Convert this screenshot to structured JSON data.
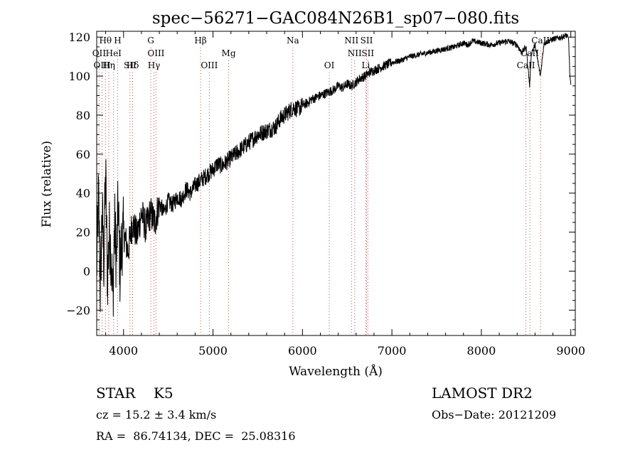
{
  "chart_data": {
    "type": "line",
    "title": "spec−56271−GAC084N26B1_sp07−080.fits",
    "xlabel": "Wavelength (Å)",
    "ylabel": "Flux (relative)",
    "xlim": [
      3700,
      9050
    ],
    "ylim": [
      -33,
      123
    ],
    "x_ticks": [
      4000,
      5000,
      6000,
      7000,
      8000,
      9000
    ],
    "y_ticks": [
      -20,
      0,
      20,
      40,
      60,
      80,
      100,
      120
    ],
    "y_tick_labels": [
      "−20",
      "0",
      "20",
      "40",
      "60",
      "80",
      "100",
      "120"
    ],
    "grid": false,
    "line_color": "#000000",
    "marker_color": "#c0504d",
    "series": [
      {
        "x": [
          3700,
          3720,
          3740,
          3760,
          3780,
          3800,
          3820,
          3840,
          3860,
          3880,
          3900,
          3920,
          3940,
          3960,
          3980,
          4000,
          4050,
          4100,
          4150,
          4200,
          4250,
          4300,
          4350,
          4400,
          4450,
          4500,
          4550,
          4600,
          4650,
          4700,
          4750,
          4800,
          4850,
          4900,
          4950,
          5000,
          5050,
          5100,
          5150,
          5200,
          5250,
          5300,
          5350,
          5400,
          5450,
          5500,
          5550,
          5600,
          5650,
          5700,
          5750,
          5800,
          5850,
          5900,
          5950,
          6000,
          6050,
          6100,
          6150,
          6200,
          6250,
          6300,
          6350,
          6400,
          6450,
          6500,
          6550,
          6600,
          6650,
          6700,
          6750,
          6800,
          6850,
          6900,
          6950,
          7000,
          7100,
          7200,
          7300,
          7400,
          7500,
          7600,
          7700,
          7800,
          7850,
          7900,
          8000,
          8100,
          8200,
          8300,
          8400,
          8450,
          8500,
          8540,
          8560,
          8600,
          8660,
          8700,
          8800,
          8900,
          8950,
          8975,
          8990,
          9000
        ],
        "y": [
          0,
          40,
          -10,
          30,
          5,
          50,
          -5,
          20,
          10,
          -15,
          25,
          5,
          35,
          0,
          15,
          20,
          10,
          25,
          18,
          30,
          22,
          30,
          25,
          35,
          30,
          36,
          34,
          38,
          37,
          42,
          40,
          44,
          46,
          48,
          50,
          52,
          55,
          54,
          56,
          58,
          60,
          62,
          64,
          66,
          68,
          70,
          71,
          72,
          73,
          74,
          78,
          80,
          82,
          84,
          83,
          85,
          86,
          88,
          89,
          90,
          91,
          92,
          93,
          95,
          94,
          96,
          95,
          97,
          99,
          100,
          102,
          103,
          104,
          105,
          106,
          107,
          108,
          110,
          111,
          112,
          113,
          114,
          115,
          117,
          116,
          118,
          117,
          116,
          117,
          118,
          116,
          112,
          115,
          95,
          112,
          116,
          100,
          117,
          119,
          120,
          121,
          119,
          100,
          95
        ]
      }
    ],
    "lines": [
      {
        "label": "Hθ",
        "wl": 3798,
        "row": 0
      },
      {
        "label": "H",
        "wl": 3934,
        "row": 0
      },
      {
        "label": "G",
        "wl": 4305,
        "row": 0
      },
      {
        "label": "Hβ",
        "wl": 4861,
        "row": 0
      },
      {
        "label": "Na",
        "wl": 5893,
        "row": 0
      },
      {
        "label": "NII",
        "wl": 6548,
        "row": 0
      },
      {
        "label": "SII",
        "wl": 6717,
        "row": 0
      },
      {
        "label": "CaII",
        "wl": 8662,
        "row": 0
      },
      {
        "label": "OII",
        "wl": 3727,
        "row": 1
      },
      {
        "label": "HeI",
        "wl": 3889,
        "row": 1
      },
      {
        "label": "OIII",
        "wl": 4363,
        "row": 1
      },
      {
        "label": "Mg",
        "wl": 5175,
        "row": 1
      },
      {
        "label": "NII",
        "wl": 6584,
        "row": 1
      },
      {
        "label": "SII",
        "wl": 6731,
        "row": 1
      },
      {
        "label": "CaII",
        "wl": 8542,
        "row": 1
      },
      {
        "label": "OIII",
        "wl": 3760,
        "row": 2
      },
      {
        "label": "Hη",
        "wl": 3835,
        "row": 2
      },
      {
        "label": "Hδ",
        "wl": 4102,
        "row": 2
      },
      {
        "label": "SII",
        "wl": 4072,
        "row": 2
      },
      {
        "label": "Hγ",
        "wl": 4340,
        "row": 2
      },
      {
        "label": "OIII",
        "wl": 4959,
        "row": 2
      },
      {
        "label": "OI",
        "wl": 6300,
        "row": 2
      },
      {
        "label": "Li",
        "wl": 6708,
        "row": 2
      },
      {
        "label": "CaII",
        "wl": 8498,
        "row": 2
      }
    ]
  },
  "footer": {
    "object": "STAR    K5",
    "survey": "LAMOST DR2",
    "cz": "cz = 15.2 ± 3.4 km/s",
    "obs_date": "Obs−Date: 20121209",
    "coords": "RA =  86.74134, DEC =  25.08316"
  }
}
